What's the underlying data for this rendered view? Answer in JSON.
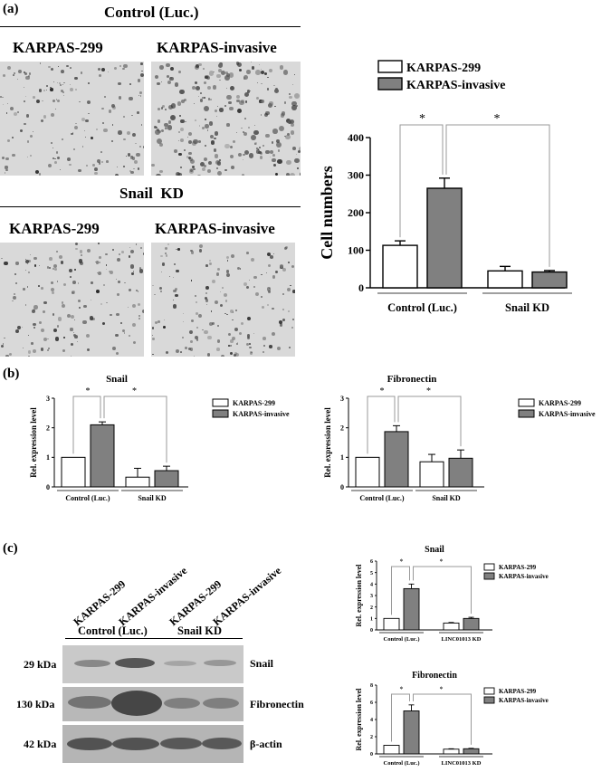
{
  "panel_a": {
    "letter": "(a)",
    "control_title": "Control (Luc.)",
    "kd_title": "Snail  KD",
    "col_left": "KARPAS-299",
    "col_right": "KARPAS-invasive"
  },
  "panel_b": {
    "letter": "(b)"
  },
  "panel_c": {
    "letter": "(c)",
    "lane_labels": [
      "KARPAS-299",
      "KARPAS-invasive",
      "KARPAS-299",
      "KARPAS-invasive"
    ],
    "group_control": "Control (Luc.)",
    "group_kd": "Snail KD",
    "kda": [
      "29 kDa",
      "130 kDa",
      "42 kDa"
    ],
    "proteins": [
      "Snail",
      "Fibronectin",
      "β-actin"
    ]
  },
  "colors": {
    "open_bar": "#ffffff",
    "gray_bar": "#808080",
    "bracket": "#999999"
  },
  "chart_data": [
    {
      "id": "a_cell_numbers",
      "type": "bar",
      "title": "",
      "ylabel": "Cell numbers",
      "xlabel": "",
      "groups": [
        "Control (Luc.)",
        "Snail KD"
      ],
      "yticks": [
        0,
        100,
        200,
        300,
        400
      ],
      "ylim": [
        0,
        400
      ],
      "series": [
        {
          "name": "KARPAS-299",
          "values": [
            113,
            45
          ],
          "errors": [
            12,
            12
          ]
        },
        {
          "name": "KARPAS-invasive",
          "values": [
            265,
            42
          ],
          "errors": [
            27,
            4
          ]
        }
      ],
      "significance": [
        "*",
        "*"
      ],
      "legend": "top"
    },
    {
      "id": "b_snail",
      "type": "bar",
      "title": "Snail",
      "ylabel": "Rel. expression level",
      "groups": [
        "Control (Luc.)",
        "Snail KD"
      ],
      "yticks": [
        0,
        1,
        2,
        3
      ],
      "ylim": [
        0,
        3
      ],
      "series": [
        {
          "name": "KARPAS-299",
          "values": [
            1.0,
            0.33
          ],
          "errors": [
            0,
            0.3
          ]
        },
        {
          "name": "KARPAS-invasive",
          "values": [
            2.1,
            0.55
          ],
          "errors": [
            0.1,
            0.15
          ]
        }
      ],
      "significance": [
        "*",
        "*"
      ],
      "legend": "right"
    },
    {
      "id": "b_fibronectin",
      "type": "bar",
      "title": "Fibronectin",
      "ylabel": "Rel. expression level",
      "groups": [
        "Control (Luc.)",
        "Snail KD"
      ],
      "yticks": [
        0,
        1,
        2,
        3
      ],
      "ylim": [
        0,
        3
      ],
      "series": [
        {
          "name": "KARPAS-299",
          "values": [
            1.0,
            0.85
          ],
          "errors": [
            0,
            0.25
          ]
        },
        {
          "name": "KARPAS-invasive",
          "values": [
            1.87,
            0.97
          ],
          "errors": [
            0.2,
            0.28
          ]
        }
      ],
      "significance": [
        "*",
        "*"
      ],
      "legend": "right"
    },
    {
      "id": "c_snail",
      "type": "bar",
      "title": "Snail",
      "ylabel": "Rel. expression level",
      "groups": [
        "Control (Luc.)",
        "LINC01013 KD"
      ],
      "yticks": [
        0,
        1,
        2,
        3,
        4,
        5,
        6
      ],
      "ylim": [
        0,
        6
      ],
      "series": [
        {
          "name": "KARPAS-299",
          "values": [
            1.0,
            0.6
          ],
          "errors": [
            0,
            0.05
          ]
        },
        {
          "name": "KARPAS-invasive",
          "values": [
            3.6,
            1.0
          ],
          "errors": [
            0.4,
            0.1
          ]
        }
      ],
      "significance": [
        "*",
        "*"
      ],
      "legend": "right"
    },
    {
      "id": "c_fibronectin",
      "type": "bar",
      "title": "Fibronectin",
      "ylabel": "Rel. expression level",
      "groups": [
        "Control (Luc.)",
        "LINC01013 KD"
      ],
      "yticks": [
        0,
        2,
        4,
        6,
        8
      ],
      "ylim": [
        0,
        8
      ],
      "series": [
        {
          "name": "KARPAS-299",
          "values": [
            1.0,
            0.55
          ],
          "errors": [
            0,
            0.05
          ]
        },
        {
          "name": "KARPAS-invasive",
          "values": [
            5.0,
            0.6
          ],
          "errors": [
            0.7,
            0.05
          ]
        }
      ],
      "significance": [
        "*",
        "*"
      ],
      "legend": "right"
    }
  ]
}
